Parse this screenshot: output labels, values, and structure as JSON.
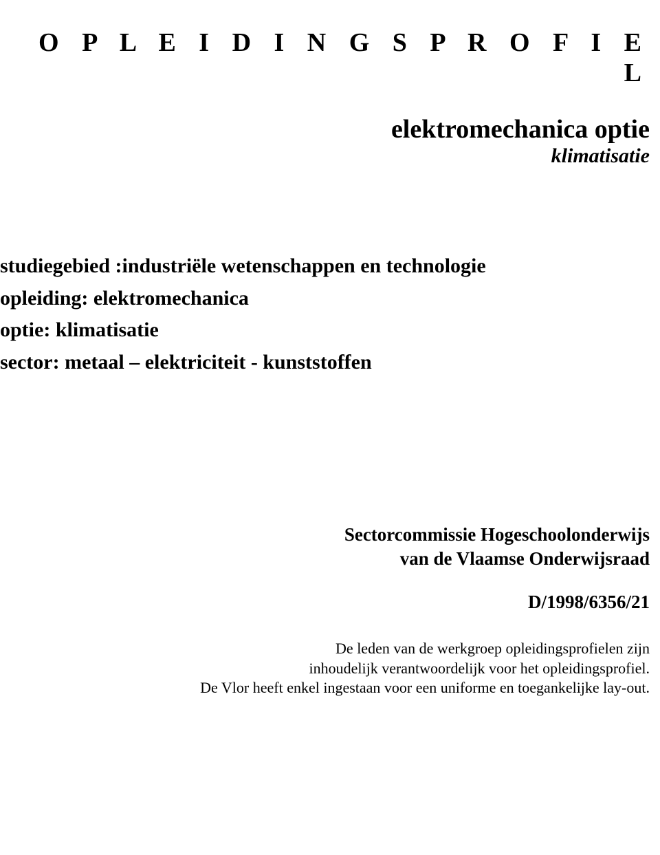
{
  "title": "O P L E I D I N G S P R O F I E L",
  "subtitle": {
    "main": "elektromechanica optie",
    "sub": "klimatisatie"
  },
  "fields": {
    "studiegebied": {
      "label": "studiegebied :",
      "value": "  industriële wetenschappen en technologie"
    },
    "opleiding": {
      "label": "opleiding",
      "value": "       : elektromechanica"
    },
    "optie": {
      "label": "optie",
      "value": "              : klimatisatie"
    },
    "sector": {
      "label": "sector",
      "value": "            : metaal – elektriciteit - kunststoffen"
    }
  },
  "committee": {
    "line1": "Sectorcommissie Hogeschoolonderwijs",
    "line2": "van de Vlaamse Onderwijsraad"
  },
  "doc_number": "D/1998/6356/21",
  "footer": {
    "line1": "De leden van de werkgroep opleidingsprofielen zijn",
    "line2": "inhoudelijk verantwoordelijk voor het opleidingsprofiel.",
    "line3": "De Vlor heeft enkel ingestaan voor een uniforme en toegankelijke lay-out."
  },
  "colors": {
    "background": "#ffffff",
    "text": "#000000"
  },
  "typography": {
    "title_fontsize": 38,
    "title_letter_spacing": 12,
    "subtitle_main_fontsize": 38,
    "subtitle_sub_fontsize": 30,
    "fields_fontsize": 30,
    "committee_fontsize": 27,
    "docnumber_fontsize": 27,
    "footer_fontsize": 22,
    "font_family": "Times New Roman"
  }
}
